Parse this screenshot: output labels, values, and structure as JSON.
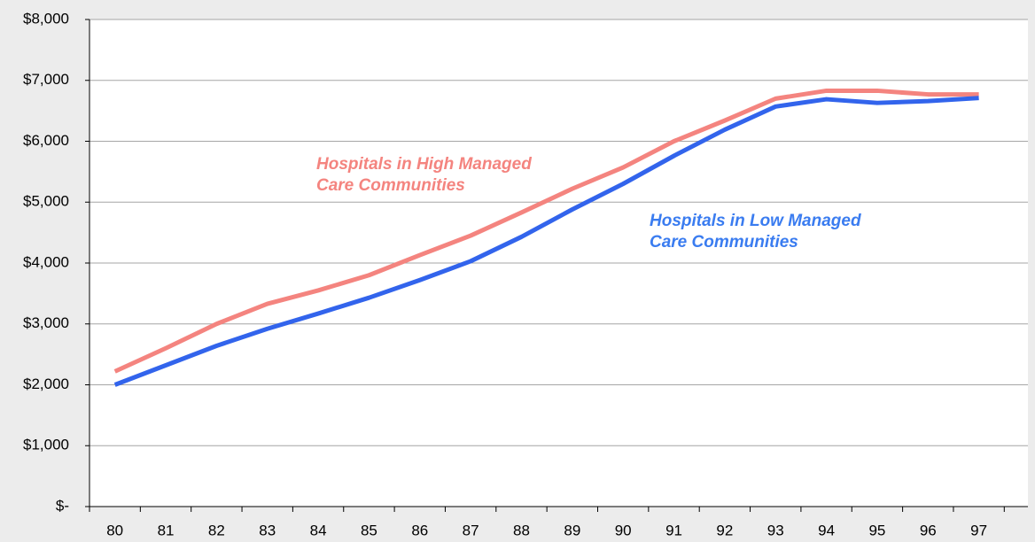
{
  "chart_data": {
    "type": "line",
    "categories": [
      "80",
      "81",
      "82",
      "83",
      "84",
      "85",
      "86",
      "87",
      "88",
      "89",
      "90",
      "91",
      "92",
      "93",
      "94",
      "95",
      "96",
      "97"
    ],
    "series": [
      {
        "name": "Hospitals in High Managed Care Communities",
        "color": "#f4847f",
        "values": [
          2220,
          2600,
          3000,
          3330,
          3550,
          3800,
          4130,
          4450,
          4830,
          5220,
          5570,
          6000,
          6340,
          6700,
          6830,
          6830,
          6770,
          6770
        ]
      },
      {
        "name": "Hospitals in Low Managed Care Communities",
        "color": "#3264ec",
        "values": [
          2000,
          2320,
          2640,
          2920,
          3170,
          3430,
          3720,
          4030,
          4430,
          4880,
          5300,
          5760,
          6190,
          6570,
          6690,
          6630,
          6660,
          6710
        ]
      }
    ],
    "annotations": [
      {
        "lines": [
          "Hospitals in High Managed",
          "Care Communities"
        ],
        "color": "#f4847f"
      },
      {
        "lines": [
          "Hospitals in Low Managed",
          "Care Communities"
        ],
        "color": "#3a7cf0"
      }
    ],
    "ylim": [
      0,
      8000
    ],
    "yticks": [
      {
        "value": 0,
        "label": "$-"
      },
      {
        "value": 1000,
        "label": "$1,000"
      },
      {
        "value": 2000,
        "label": "$2,000"
      },
      {
        "value": 3000,
        "label": "$3,000"
      },
      {
        "value": 4000,
        "label": "$4,000"
      },
      {
        "value": 5000,
        "label": "$5,000"
      },
      {
        "value": 6000,
        "label": "$6,000"
      },
      {
        "value": 7000,
        "label": "$7,000"
      },
      {
        "value": 8000,
        "label": "$8,000"
      }
    ],
    "grid": true
  }
}
